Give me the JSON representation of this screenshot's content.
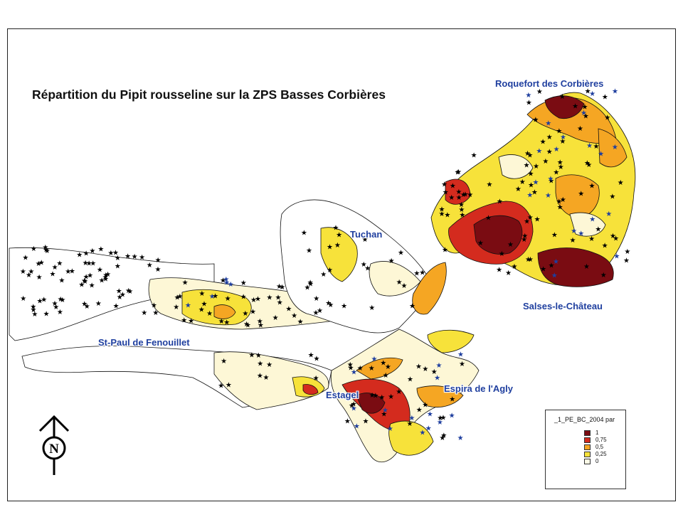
{
  "title": "Répartition du Pipit rousseline sur la ZPS Basses Corbières",
  "places": [
    {
      "id": "roquefort",
      "label": "Roquefort des Corbières"
    },
    {
      "id": "tuchan",
      "label": "Tuchan"
    },
    {
      "id": "salses",
      "label": "Salses-le-Château"
    },
    {
      "id": "stpaul",
      "label": "St-Paul de Fenouillet"
    },
    {
      "id": "estagel",
      "label": "Estagel"
    },
    {
      "id": "espira",
      "label": "Espira de l'Agly"
    }
  ],
  "legend": {
    "title": "_1_PE_BC_2004 par",
    "items": [
      {
        "label": "1",
        "color": "#7a0c12"
      },
      {
        "label": "0,75",
        "color": "#d42b1e"
      },
      {
        "label": "0,5",
        "color": "#f5a623"
      },
      {
        "label": "0,25",
        "color": "#f7e23a"
      },
      {
        "label": "0",
        "color": "#fdfbe6"
      }
    ]
  },
  "north_arrow": {
    "label": "N"
  },
  "colors": {
    "star_black": "#000000",
    "star_blue": "#1f3f9f",
    "outline": "#111111"
  }
}
